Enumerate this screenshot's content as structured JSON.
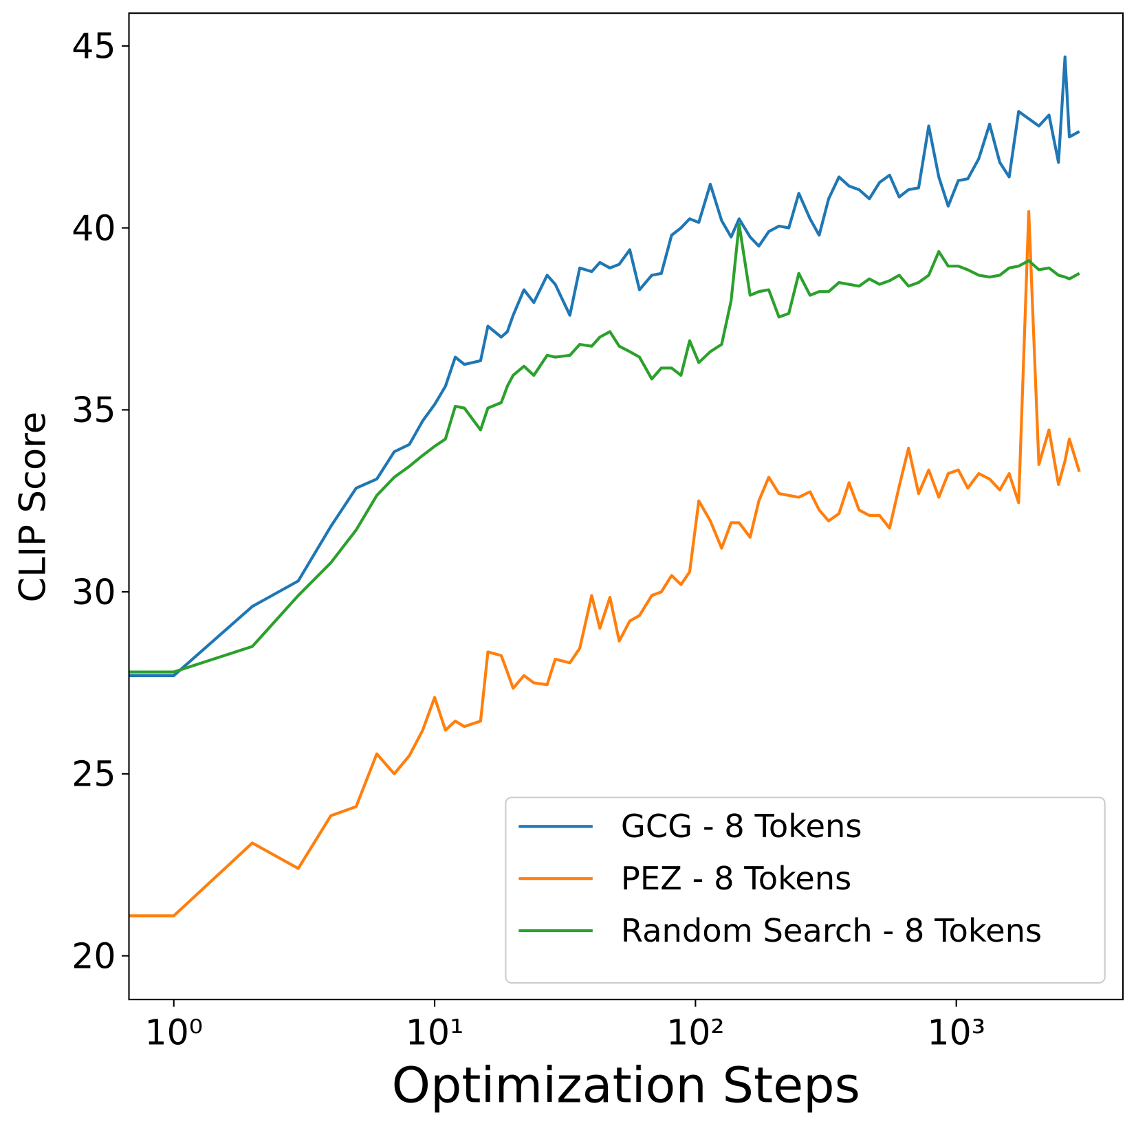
{
  "chart_data": {
    "type": "line",
    "xlabel": "Optimization Steps",
    "ylabel": "CLIP Score",
    "xscale": "log",
    "xlim": [
      0.673,
      4355
    ],
    "ylim": [
      18.8,
      45.9
    ],
    "xticks": [
      {
        "value": 1,
        "label": "10⁰"
      },
      {
        "value": 10,
        "label": "10¹"
      },
      {
        "value": 100,
        "label": "10²"
      },
      {
        "value": 1000,
        "label": "10³"
      }
    ],
    "yticks": [
      20,
      25,
      30,
      35,
      40,
      45
    ],
    "grid": false,
    "legend": "lower right",
    "x": [
      0,
      1,
      2,
      3,
      4,
      5,
      6,
      7,
      8,
      9,
      10,
      11,
      12,
      13,
      15,
      16,
      18,
      19,
      20,
      22,
      24,
      27,
      29,
      33,
      36,
      40,
      43,
      47,
      51,
      56,
      61,
      68,
      74,
      81,
      88,
      95,
      103,
      114,
      126,
      137,
      147,
      162,
      175,
      191,
      209,
      228,
      249,
      275,
      298,
      324,
      355,
      388,
      424,
      464,
      508,
      555,
      604,
      656,
      717,
      784,
      857,
      931,
      1018,
      1107,
      1219,
      1342,
      1468,
      1595,
      1734,
      1896,
      2073,
      2267,
      2465,
      2611,
      2713,
      2965
    ],
    "series": [
      {
        "name": "GCG - 8 Tokens",
        "color": "#1f77b4",
        "values": [
          27.7,
          27.7,
          29.6,
          30.3,
          31.8,
          32.85,
          33.1,
          33.85,
          34.05,
          34.7,
          35.15,
          35.65,
          36.45,
          36.25,
          36.35,
          37.3,
          37.0,
          37.15,
          37.6,
          38.3,
          37.95,
          38.7,
          38.45,
          37.6,
          38.9,
          38.8,
          39.05,
          38.9,
          39.0,
          39.4,
          38.3,
          38.7,
          38.75,
          39.8,
          40.0,
          40.25,
          40.15,
          41.2,
          40.2,
          39.75,
          40.25,
          39.75,
          39.5,
          39.9,
          40.05,
          40.0,
          40.95,
          40.25,
          39.8,
          40.8,
          41.4,
          41.15,
          41.05,
          40.8,
          41.25,
          41.45,
          40.85,
          41.05,
          41.1,
          42.8,
          41.4,
          40.6,
          41.3,
          41.35,
          41.9,
          42.85,
          41.8,
          41.4,
          43.2,
          43.0,
          42.8,
          43.1,
          41.8,
          44.7,
          42.5,
          42.65
        ]
      },
      {
        "name": "PEZ - 8 Tokens",
        "color": "#ff7f0e",
        "values": [
          21.1,
          21.1,
          23.1,
          22.4,
          23.85,
          24.1,
          25.55,
          25.0,
          25.5,
          26.2,
          27.1,
          26.2,
          26.45,
          26.3,
          26.45,
          28.35,
          28.25,
          27.8,
          27.35,
          27.7,
          27.5,
          27.45,
          28.15,
          28.05,
          28.45,
          29.9,
          29.0,
          29.85,
          28.65,
          29.2,
          29.35,
          29.9,
          30.0,
          30.45,
          30.2,
          30.55,
          32.5,
          31.95,
          31.2,
          31.9,
          31.9,
          31.5,
          32.5,
          33.15,
          32.7,
          32.65,
          32.6,
          32.75,
          32.25,
          31.95,
          32.15,
          33.0,
          32.25,
          32.1,
          32.1,
          31.75,
          32.9,
          33.95,
          32.7,
          33.35,
          32.6,
          33.25,
          33.35,
          32.85,
          33.25,
          33.1,
          32.8,
          33.25,
          32.45,
          40.45,
          33.5,
          34.45,
          32.95,
          33.6,
          34.2,
          33.3
        ]
      },
      {
        "name": "Random Search - 8 Tokens",
        "color": "#2ca02c",
        "values": [
          27.8,
          27.8,
          28.5,
          29.9,
          30.8,
          31.7,
          32.65,
          33.15,
          33.45,
          33.75,
          34.0,
          34.2,
          35.1,
          35.05,
          34.45,
          35.05,
          35.2,
          35.65,
          35.95,
          36.2,
          35.95,
          36.5,
          36.45,
          36.5,
          36.8,
          36.75,
          37.0,
          37.15,
          36.75,
          36.6,
          36.45,
          35.85,
          36.15,
          36.15,
          35.95,
          36.9,
          36.3,
          36.6,
          36.8,
          38.0,
          40.1,
          38.15,
          38.25,
          38.3,
          37.55,
          37.65,
          38.75,
          38.15,
          38.25,
          38.25,
          38.5,
          38.45,
          38.4,
          38.6,
          38.45,
          38.55,
          38.7,
          38.4,
          38.5,
          38.7,
          39.35,
          38.95,
          38.95,
          38.85,
          38.7,
          38.65,
          38.7,
          38.9,
          38.95,
          39.1,
          38.85,
          38.9,
          38.7,
          38.65,
          38.6,
          38.75
        ]
      }
    ]
  }
}
